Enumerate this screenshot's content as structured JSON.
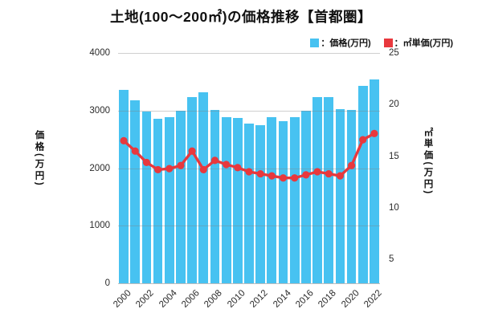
{
  "title": "土地(100〜200㎡)の価格推移【首都圏】",
  "legend": {
    "items": [
      {
        "label": "：価格(万円)",
        "color": "#47c2f1"
      },
      {
        "label": "：㎡単価(万円)",
        "color": "#e8383d"
      }
    ]
  },
  "chart_data": {
    "type": "combo",
    "title": "土地(100〜200㎡)の価格推移【首都圏】",
    "categories": [
      2000,
      2001,
      2002,
      2003,
      2004,
      2005,
      2006,
      2007,
      2008,
      2009,
      2010,
      2011,
      2012,
      2013,
      2014,
      2015,
      2016,
      2017,
      2018,
      2019,
      2020,
      2021,
      2022
    ],
    "series": [
      {
        "name": "価格(万円)",
        "type": "bar",
        "axis": "left",
        "color": "#47c2f1",
        "values": [
          3360,
          3180,
          2980,
          2860,
          2890,
          3000,
          3240,
          3320,
          3010,
          2890,
          2870,
          2770,
          2750,
          2890,
          2820,
          2880,
          3000,
          3230,
          3230,
          3030,
          3010,
          3430,
          3540
        ]
      },
      {
        "name": "㎡単価(万円)",
        "type": "line",
        "axis": "right",
        "color": "#e8383d",
        "values": [
          16.5,
          15.5,
          14.4,
          13.7,
          13.8,
          14.1,
          15.5,
          13.7,
          14.6,
          14.2,
          13.9,
          13.5,
          13.3,
          13.1,
          12.9,
          12.9,
          13.2,
          13.5,
          13.3,
          13.1,
          14.1,
          16.6,
          17.2
        ]
      }
    ],
    "ylabel_left": "価格(万円)",
    "ylabel_right": "㎡単価(万円)",
    "ylim_left": [
      0,
      4000
    ],
    "yticks_left": [
      0,
      1000,
      2000,
      3000,
      4000
    ],
    "ylim_right": [
      2.7,
      25
    ],
    "yticks_right": [
      5,
      10,
      15,
      20,
      25
    ],
    "xtick_labels": [
      "2000",
      "2002",
      "2004",
      "2006",
      "2008",
      "2010",
      "2012",
      "2014",
      "2016",
      "2018",
      "2020",
      "2022"
    ],
    "grid": "horizontal",
    "legend_position": "top-right"
  }
}
